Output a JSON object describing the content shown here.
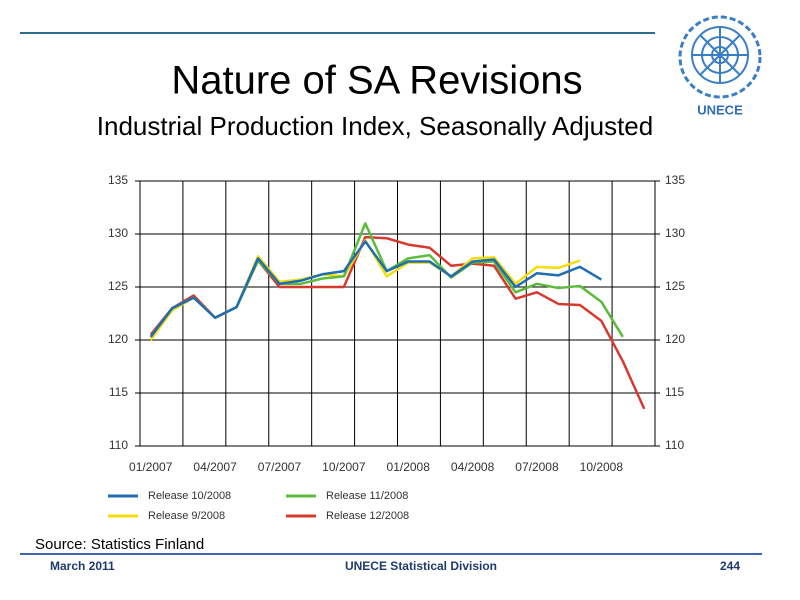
{
  "header": {
    "title": "Nature of SA Revisions",
    "subtitle": "Industrial Production Index, Seasonally Adjusted"
  },
  "logo": {
    "label": "UNECE"
  },
  "chart_data": {
    "type": "line",
    "categories": [
      "01/2007",
      null,
      null,
      "04/2007",
      null,
      null,
      "07/2007",
      null,
      null,
      "10/2007",
      null,
      null,
      "01/2008",
      null,
      null,
      "04/2008",
      null,
      null,
      "07/2008",
      null,
      null,
      "10/2008",
      null,
      null
    ],
    "ylim": [
      110,
      135
    ],
    "yticks": [
      110,
      115,
      120,
      125,
      130,
      135
    ],
    "y2lim": [
      110,
      135
    ],
    "y2ticks": [
      110,
      115,
      120,
      125,
      130,
      135
    ],
    "grid": true,
    "legend": "bottom",
    "series": [
      {
        "name": "Release 10/2008",
        "color": "#1f6db3",
        "values": [
          120.3,
          123,
          124,
          122.1,
          123.1,
          127.7,
          125.3,
          125.6,
          126.2,
          126.5,
          129.3,
          126.5,
          127.4,
          127.4,
          126,
          127.4,
          127.6,
          125,
          126.3,
          126.1,
          126.9,
          125.7,
          null,
          null
        ]
      },
      {
        "name": "Release 11/2008",
        "color": "#5cbb3a",
        "values": [
          120.3,
          123,
          124,
          122.1,
          123.1,
          127.5,
          125.3,
          125.3,
          125.8,
          126,
          131,
          126.5,
          127.7,
          128,
          125.9,
          127.3,
          127.4,
          124.5,
          125.3,
          124.9,
          125.1,
          123.6,
          120.3,
          null
        ]
      },
      {
        "name": "Release 9/2008",
        "color": "#f5dc0a",
        "values": [
          120,
          122.8,
          124,
          122.1,
          123.1,
          127.9,
          125.5,
          125.7,
          126.2,
          126,
          129.4,
          126,
          127.3,
          127.3,
          126,
          127.7,
          127.8,
          125.3,
          126.9,
          126.8,
          127.5,
          null,
          null,
          null
        ]
      },
      {
        "name": "Release 12/2008",
        "color": "#d63a2f",
        "values": [
          120.5,
          123,
          124.2,
          122.1,
          123.1,
          127.5,
          125,
          125,
          125,
          125,
          129.7,
          129.6,
          129,
          128.7,
          127,
          127.2,
          127,
          123.9,
          124.5,
          123.4,
          123.3,
          121.8,
          118,
          113.5
        ]
      }
    ]
  },
  "source": "Source: Statistics Finland",
  "footer": {
    "date": "March 2011",
    "org": "UNECE Statistical Division",
    "page": "244"
  }
}
